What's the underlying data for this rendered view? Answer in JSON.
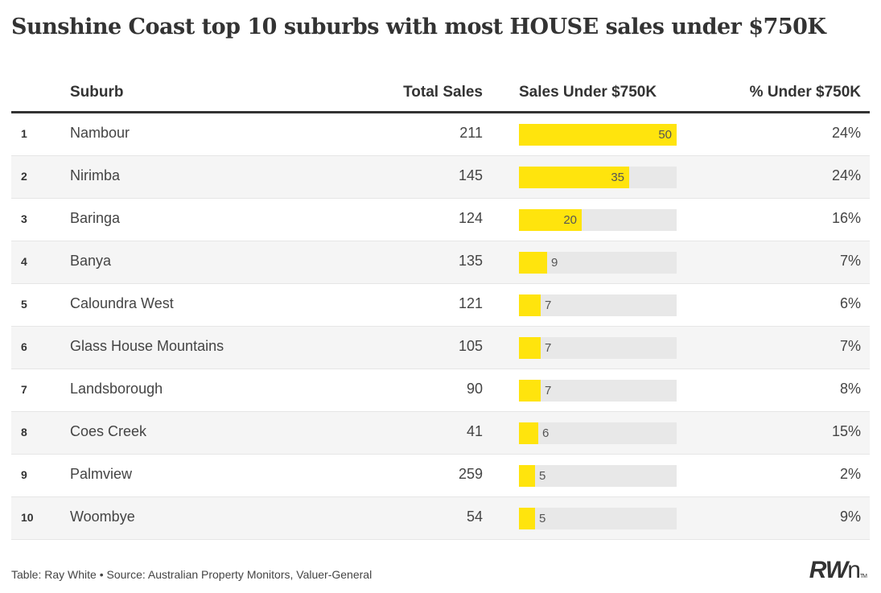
{
  "title": "Sunshine Coast top 10 suburbs with most HOUSE sales under $750K",
  "columns": {
    "suburb": "Suburb",
    "total": "Total Sales",
    "under": "Sales Under $750K",
    "pct": "% Under $750K"
  },
  "footer": {
    "credit": "Table: Ray White",
    "separator": "•",
    "source": "Source: Australian Property Monitors, Valuer-General"
  },
  "logo": {
    "main": "RW",
    "suffix": "n",
    "tm": "TM"
  },
  "colors": {
    "bar": "#ffe40d",
    "bar_bg": "#e8e8e8",
    "alt_row": "#f5f5f5"
  },
  "chart_data": {
    "type": "table",
    "title": "Sunshine Coast top 10 suburbs with most HOUSE sales under $750K",
    "bar_max": 50,
    "rows": [
      {
        "rank": "1",
        "suburb": "Nambour",
        "total": "211",
        "under": 50,
        "pct": "24%"
      },
      {
        "rank": "2",
        "suburb": "Nirimba",
        "total": "145",
        "under": 35,
        "pct": "24%"
      },
      {
        "rank": "3",
        "suburb": "Baringa",
        "total": "124",
        "under": 20,
        "pct": "16%"
      },
      {
        "rank": "4",
        "suburb": "Banya",
        "total": "135",
        "under": 9,
        "pct": "7%"
      },
      {
        "rank": "5",
        "suburb": "Caloundra West",
        "total": "121",
        "under": 7,
        "pct": "6%"
      },
      {
        "rank": "6",
        "suburb": "Glass House Mountains",
        "total": "105",
        "under": 7,
        "pct": "7%"
      },
      {
        "rank": "7",
        "suburb": "Landsborough",
        "total": "90",
        "under": 7,
        "pct": "8%"
      },
      {
        "rank": "8",
        "suburb": "Coes Creek",
        "total": "41",
        "under": 6,
        "pct": "15%"
      },
      {
        "rank": "9",
        "suburb": "Palmview",
        "total": "259",
        "under": 5,
        "pct": "2%"
      },
      {
        "rank": "10",
        "suburb": "Woombye",
        "total": "54",
        "under": 5,
        "pct": "9%"
      }
    ]
  }
}
